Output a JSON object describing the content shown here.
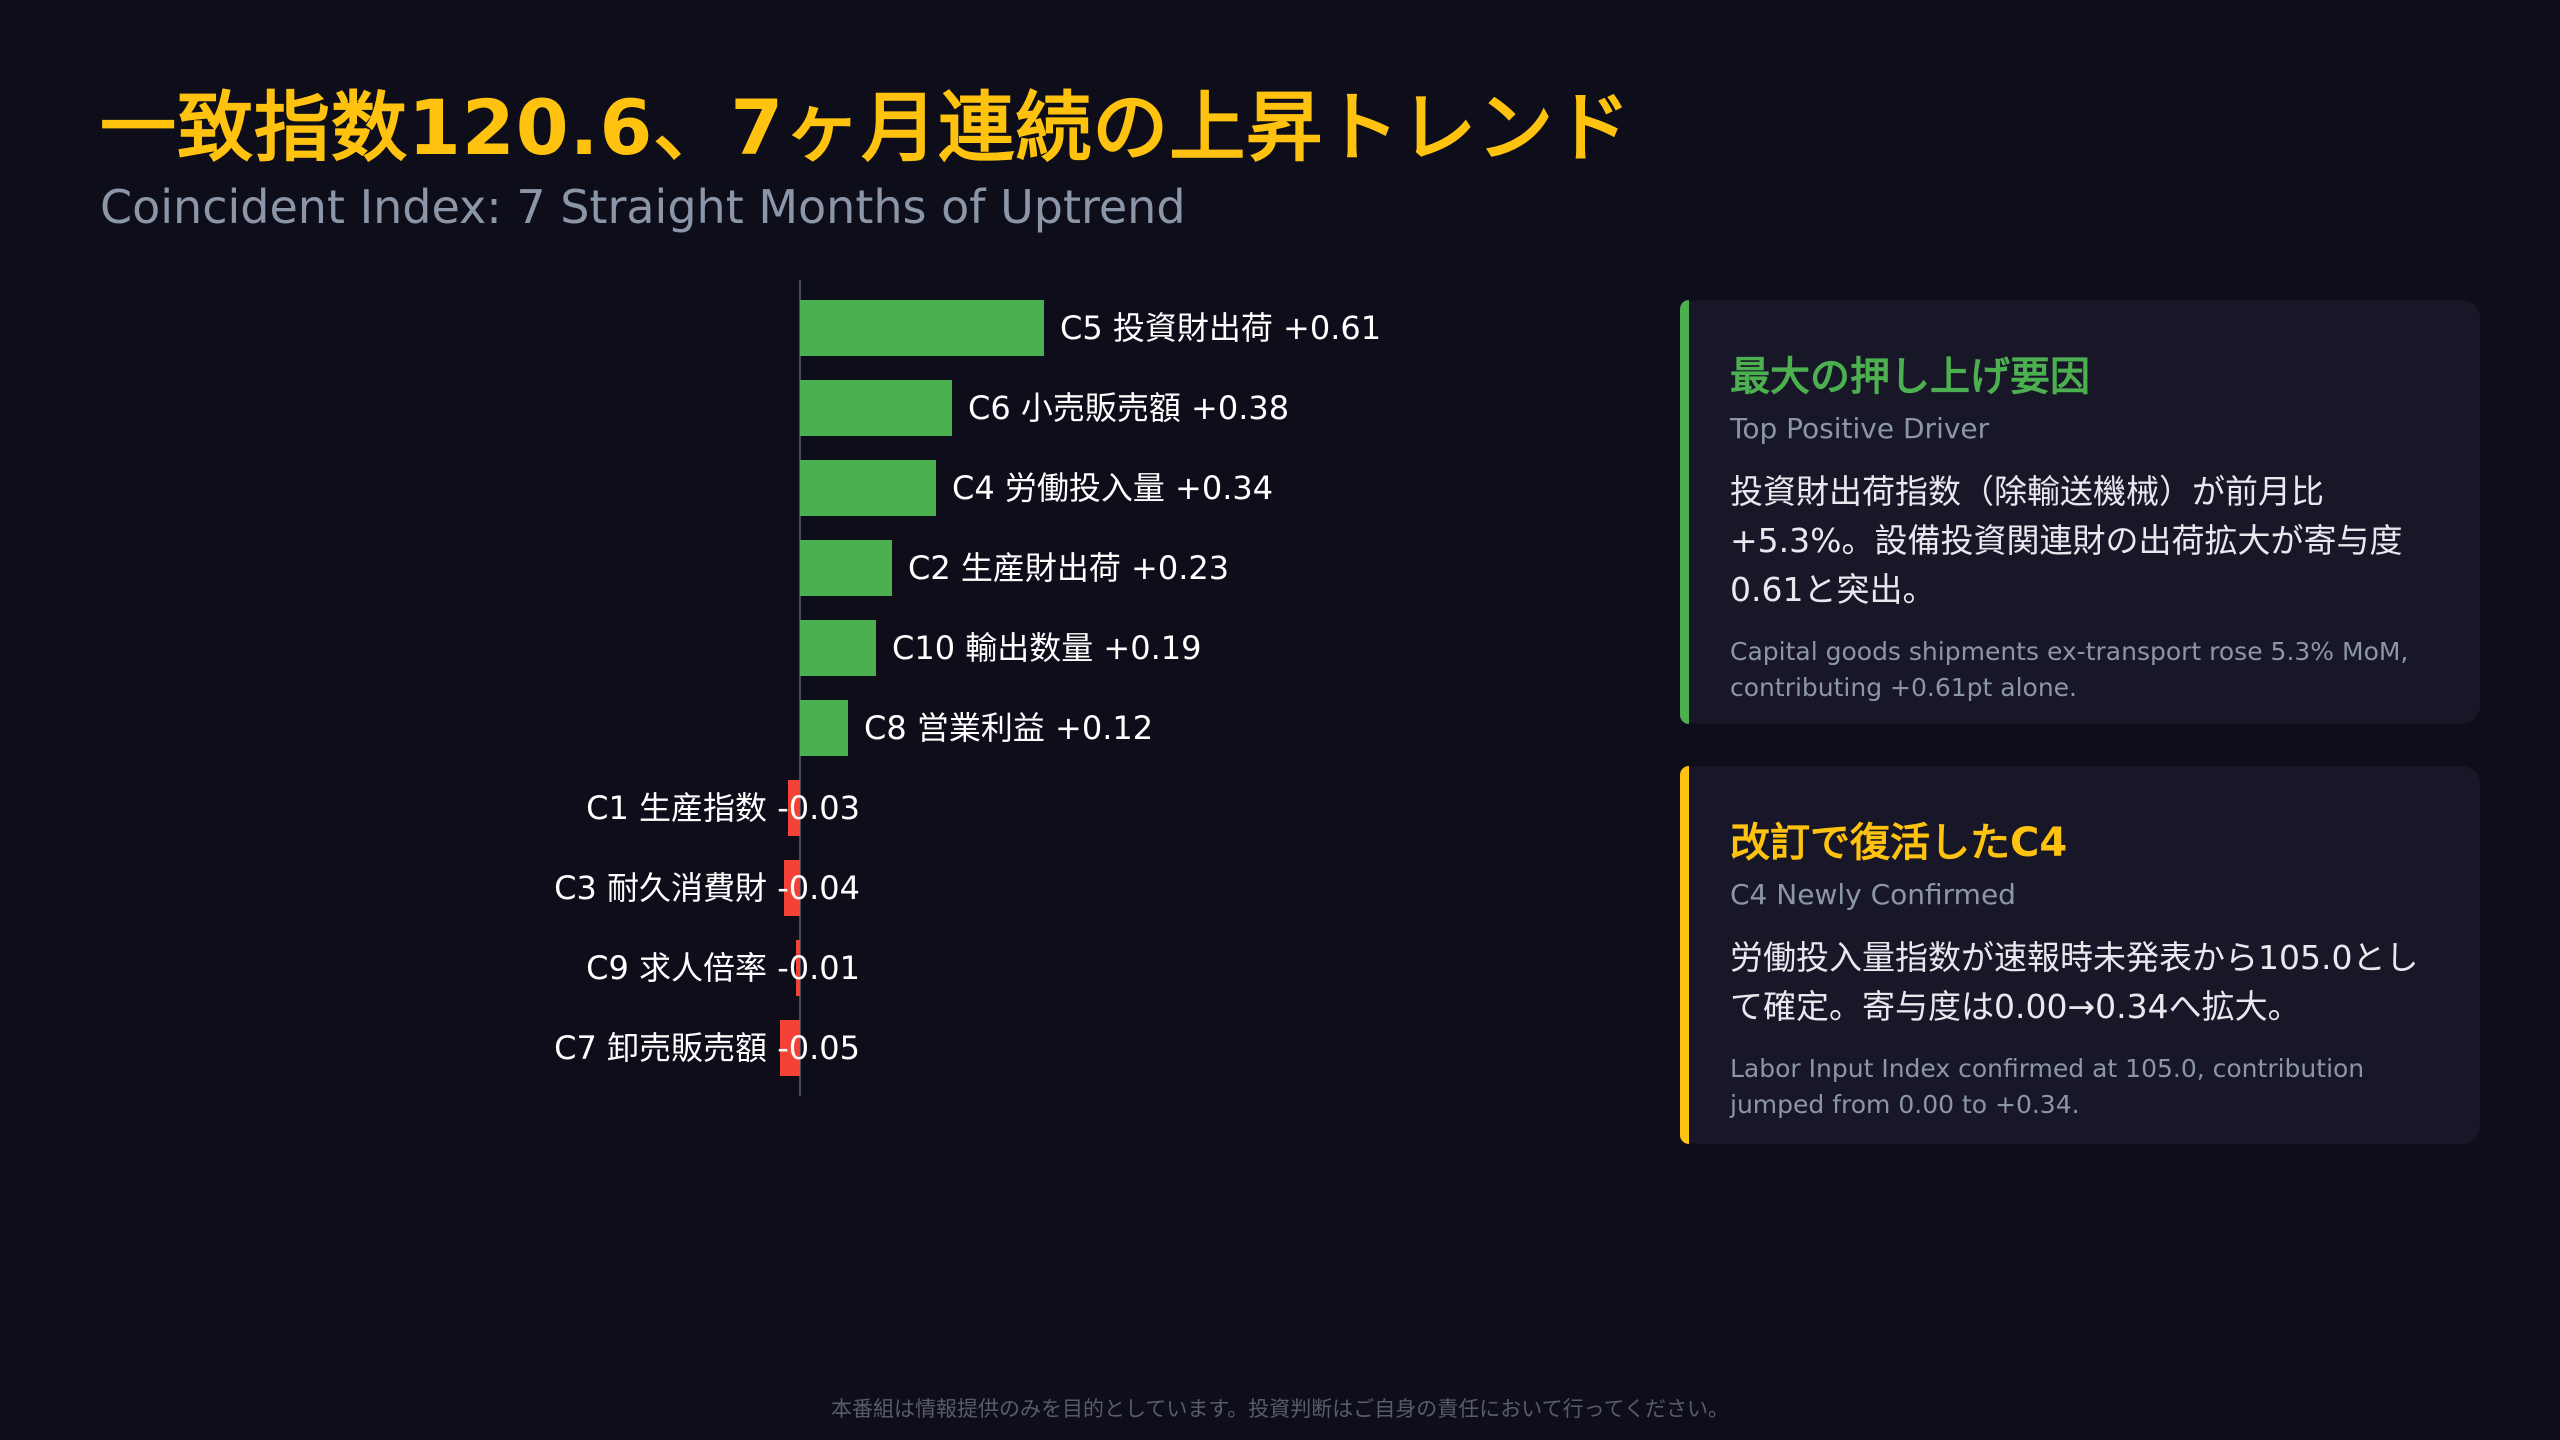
{
  "header": {
    "title": "一致指数120.6、7ヶ月連続の上昇トレンド",
    "subtitle": "Coincident Index: 7 Straight Months of Uptrend"
  },
  "chart_data": {
    "type": "bar",
    "orientation": "horizontal",
    "title": "",
    "xlabel": "",
    "ylabel": "",
    "categories": [
      "C5 投資財出荷",
      "C6 小売販売額",
      "C4 労働投入量",
      "C2 生産財出荷",
      "C10 輸出数量",
      "C8 営業利益",
      "C1 生産指数",
      "C3 耐久消費財",
      "C9 求人倍率",
      "C7 卸売販売額"
    ],
    "values": [
      0.61,
      0.38,
      0.34,
      0.23,
      0.19,
      0.12,
      -0.03,
      -0.04,
      -0.01,
      -0.05
    ],
    "value_labels": [
      "+0.61",
      "+0.38",
      "+0.34",
      "+0.23",
      "+0.19",
      "+0.12",
      "-0.03",
      "-0.04",
      "-0.01",
      "-0.05"
    ],
    "colors": {
      "positive": "#4caf50",
      "negative": "#f44336",
      "axis": "#4a4a5e"
    },
    "grid": false
  },
  "cards": [
    {
      "title": "最大の押し上げ要因",
      "subtitle": "Top Positive Driver",
      "body": "投資財出荷指数（除輸送機械）が前月比+5.3%。設備投資関連財の出荷拡大が寄与度0.61と突出。",
      "note": "Capital goods shipments ex-transport rose 5.3% MoM, contributing +0.61pt alone.",
      "accent_color": "#4caf50"
    },
    {
      "title": "改訂で復活したC4",
      "subtitle": "C4 Newly Confirmed",
      "body": "労働投入量指数が速報時未発表から105.0として確定。寄与度は0.00→0.34へ拡大。",
      "note": "Labor Input Index confirmed at 105.0, contribution jumped from 0.00 to +0.34.",
      "accent_color": "#ffc30f"
    }
  ],
  "footer": {
    "disclaimer": "本番組は情報提供のみを目的としています。投資判断はご自身の責任において行ってください。"
  }
}
